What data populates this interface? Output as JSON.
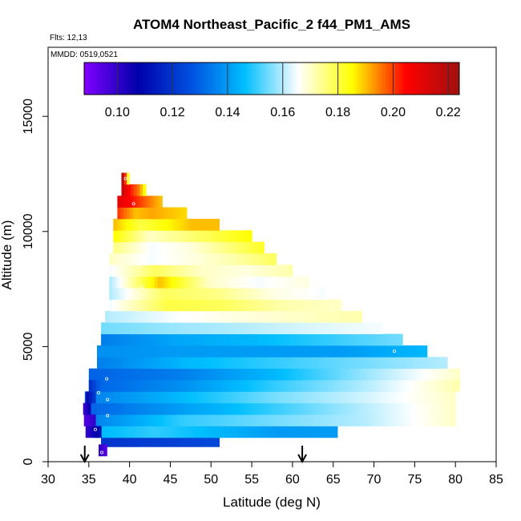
{
  "chart_data": {
    "type": "heatmap",
    "title": "ATOM4 Northeast_Pacific_2 f44_PM1_AMS",
    "flights_label": "Flts: 12,13",
    "dates_label": "MMDD: 0519,0521",
    "xlabel": "Latitude (deg N)",
    "ylabel": "Altitude (m)",
    "xlim": [
      30,
      85
    ],
    "ylim": [
      0,
      18000
    ],
    "x_ticks": [
      30,
      35,
      40,
      45,
      50,
      55,
      60,
      65,
      70,
      75,
      80,
      85
    ],
    "x_tick_labels": [
      "30",
      "35",
      "40",
      "45",
      "50",
      "55",
      "60",
      "65",
      "70",
      "75",
      "80",
      "85"
    ],
    "y_ticks": [
      0,
      5000,
      10000,
      15000
    ],
    "y_tick_labels": [
      "0",
      "5000",
      "10000",
      "15000"
    ],
    "colorbar": {
      "range": [
        0.088,
        0.224
      ],
      "ticks": [
        0.1,
        0.12,
        0.14,
        0.16,
        0.18,
        0.2,
        0.22
      ],
      "tick_labels": [
        "0.10",
        "0.12",
        "0.14",
        "0.16",
        "0.18",
        "0.20",
        "0.22"
      ],
      "colors": [
        "#8000ff",
        "#0000aa",
        "#0050e0",
        "#00bfff",
        "#ffffff",
        "#ffff00",
        "#ff0000",
        "#a01010"
      ]
    },
    "arrows_latitude": [
      34.5,
      61.2
    ],
    "bands": [
      {
        "alt": 900,
        "lat_start": 36.5,
        "lat_end": 51.0,
        "values": [
          0.12,
          0.125
        ]
      },
      {
        "alt": 1300,
        "lat_start": 35.5,
        "lat_end": 65.5,
        "values": [
          0.145,
          0.15,
          0.145,
          0.14,
          0.14
        ]
      },
      {
        "alt": 1800,
        "lat_start": 35.0,
        "lat_end": 80.0,
        "values": [
          0.135,
          0.15,
          0.155,
          0.16,
          0.17
        ]
      },
      {
        "alt": 2300,
        "lat_start": 34.5,
        "lat_end": 80.0,
        "values": [
          0.13,
          0.14,
          0.15,
          0.16,
          0.17
        ]
      },
      {
        "alt": 2800,
        "lat_start": 34.5,
        "lat_end": 80.0,
        "values": [
          0.135,
          0.145,
          0.155,
          0.162,
          0.17
        ]
      },
      {
        "alt": 3300,
        "lat_start": 35.0,
        "lat_end": 80.5,
        "values": [
          0.13,
          0.138,
          0.15,
          0.16,
          0.172
        ]
      },
      {
        "alt": 3800,
        "lat_start": 35.0,
        "lat_end": 80.5,
        "values": [
          0.13,
          0.135,
          0.145,
          0.158,
          0.17
        ]
      },
      {
        "alt": 4300,
        "lat_start": 36.0,
        "lat_end": 79.0,
        "values": [
          0.135,
          0.145,
          0.15,
          0.155,
          0.16
        ]
      },
      {
        "alt": 4800,
        "lat_start": 36.0,
        "lat_end": 76.5,
        "values": [
          0.138,
          0.14,
          0.14,
          0.14,
          0.145
        ]
      },
      {
        "alt": 5300,
        "lat_start": 36.5,
        "lat_end": 73.5,
        "values": [
          0.135,
          0.142,
          0.145,
          0.15,
          0.155
        ]
      },
      {
        "alt": 5800,
        "lat_start": 36.5,
        "lat_end": 71.0,
        "values": [
          0.155,
          0.158,
          0.16,
          0.163,
          0.165
        ]
      },
      {
        "alt": 6300,
        "lat_start": 37.0,
        "lat_end": 68.5,
        "values": [
          0.16,
          0.165,
          0.168,
          0.17,
          0.172
        ]
      },
      {
        "alt": 6800,
        "lat_start": 37.5,
        "lat_end": 66.0,
        "values": [
          0.165,
          0.18,
          0.178,
          0.172,
          0.17
        ]
      },
      {
        "alt": 7300,
        "lat_start": 37.5,
        "lat_end": 64.0,
        "values": [
          0.16,
          0.178,
          0.175,
          0.168,
          0.165
        ]
      },
      {
        "alt": 7800,
        "lat_start": 37.5,
        "lat_end": 62.0,
        "values": [
          0.16,
          0.19,
          0.17,
          0.165,
          0.168
        ]
      },
      {
        "alt": 8300,
        "lat_start": 37.5,
        "lat_end": 60.0,
        "values": [
          0.165,
          0.178,
          0.17,
          0.168,
          0.172
        ]
      },
      {
        "alt": 8800,
        "lat_start": 37.5,
        "lat_end": 58.0,
        "values": [
          0.17,
          0.165,
          0.168,
          0.172,
          0.178
        ]
      },
      {
        "alt": 9300,
        "lat_start": 38.0,
        "lat_end": 56.5,
        "values": [
          0.175,
          0.165,
          0.168,
          0.175,
          0.182
        ]
      },
      {
        "alt": 9800,
        "lat_start": 38.0,
        "lat_end": 55.0,
        "values": [
          0.185,
          0.17,
          0.175,
          0.18,
          0.185
        ]
      },
      {
        "alt": 10300,
        "lat_start": 38.0,
        "lat_end": 51.0,
        "values": [
          0.19,
          0.18,
          0.185,
          0.19,
          0.19
        ]
      },
      {
        "alt": 10800,
        "lat_start": 38.5,
        "lat_end": 47.0,
        "values": [
          0.2,
          0.19,
          0.192,
          0.19,
          0.188
        ]
      },
      {
        "alt": 11300,
        "lat_start": 38.5,
        "lat_end": 44.0,
        "values": [
          0.21,
          0.205,
          0.2,
          0.195,
          0.19
        ]
      },
      {
        "alt": 11800,
        "lat_start": 39.0,
        "lat_end": 42.0,
        "values": [
          0.215,
          0.205,
          0.2,
          0.195,
          0.185
        ]
      },
      {
        "alt": 12300,
        "lat_start": 39.0,
        "lat_end": 40.0,
        "values": [
          0.22,
          0.21,
          0.2,
          0.19,
          0.18
        ]
      }
    ],
    "low_profile_cells": [
      {
        "alt": 500,
        "lat_start": 36.2,
        "lat_end": 37.2,
        "values": [
          0.1,
          0.095
        ]
      },
      {
        "alt": 1300,
        "lat_start": 34.6,
        "lat_end": 36.5,
        "values": [
          0.1,
          0.11
        ]
      },
      {
        "alt": 1800,
        "lat_start": 34.4,
        "lat_end": 35.8,
        "values": [
          0.095,
          0.1
        ]
      },
      {
        "alt": 2300,
        "lat_start": 34.3,
        "lat_end": 35.2,
        "values": [
          0.1,
          0.105
        ]
      },
      {
        "alt": 2800,
        "lat_start": 34.6,
        "lat_end": 35.8,
        "values": [
          0.11,
          0.12
        ]
      },
      {
        "alt": 3300,
        "lat_start": 35.0,
        "lat_end": 36.3,
        "values": [
          0.12,
          0.128
        ]
      }
    ],
    "profile_points": [
      {
        "lat": 39.5,
        "alt": 12300
      },
      {
        "lat": 40.5,
        "alt": 11200
      },
      {
        "lat": 41.3,
        "alt": 8500
      },
      {
        "lat": 41.5,
        "alt": 7600
      },
      {
        "lat": 72.5,
        "alt": 4800
      },
      {
        "lat": 37.2,
        "alt": 3600
      },
      {
        "lat": 36.2,
        "alt": 3000
      },
      {
        "lat": 37.3,
        "alt": 2700
      },
      {
        "lat": 37.3,
        "alt": 2000
      },
      {
        "lat": 35.8,
        "alt": 1400
      },
      {
        "lat": 36.6,
        "alt": 400
      }
    ]
  }
}
